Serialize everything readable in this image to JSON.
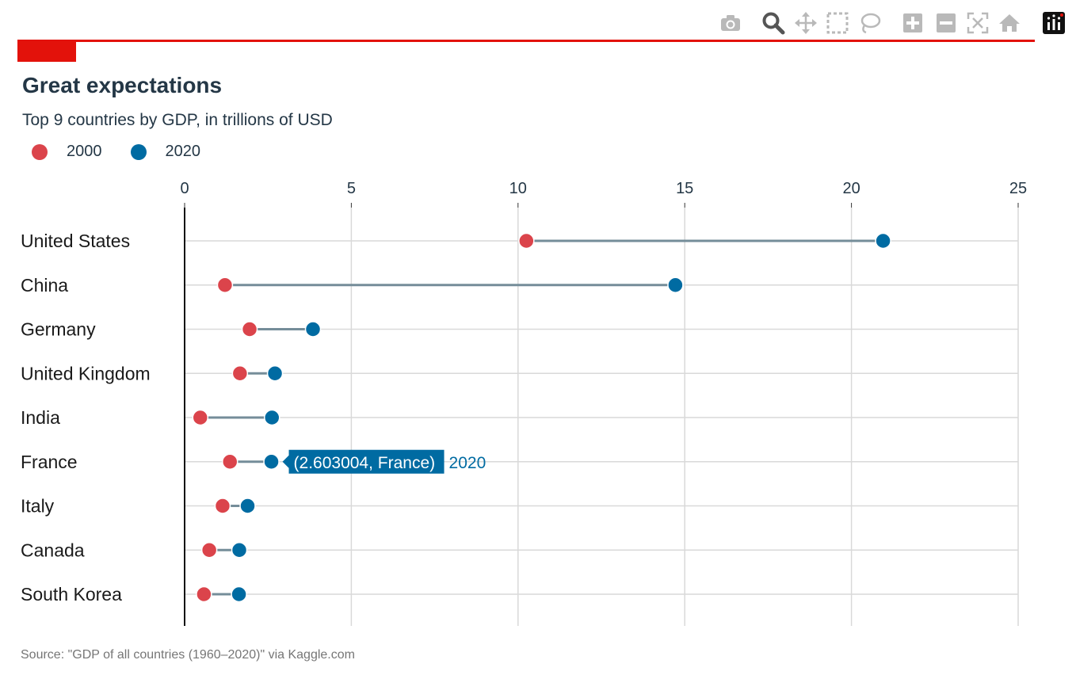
{
  "modebar": {
    "buttons": [
      {
        "name": "camera-icon",
        "label": "Download plot as a png"
      },
      {
        "name": "zoom-icon",
        "label": "Zoom"
      },
      {
        "name": "pan-icon",
        "label": "Pan"
      },
      {
        "name": "box-select-icon",
        "label": "Box Select"
      },
      {
        "name": "lasso-select-icon",
        "label": "Lasso Select"
      },
      {
        "name": "zoom-in-icon",
        "label": "Zoom in"
      },
      {
        "name": "zoom-out-icon",
        "label": "Zoom out"
      },
      {
        "name": "autoscale-icon",
        "label": "Autoscale"
      },
      {
        "name": "reset-axes-icon",
        "label": "Reset axes"
      },
      {
        "name": "plotly-logo-icon",
        "label": "Produced with Plotly"
      }
    ]
  },
  "colors": {
    "accent": "#e3120b",
    "series_2000": "#db444b",
    "series_2020": "#006ba2",
    "connector": "#758d99",
    "grid": "#d9d9d9",
    "title": "#243746"
  },
  "header": {
    "title": "Great expectations",
    "subtitle": "Top 9 countries by GDP, in trillions of USD"
  },
  "legend": {
    "items": [
      "2000",
      "2020"
    ],
    "placement": "top-left"
  },
  "tooltip": {
    "text": "(2.603004, France)",
    "series": "2020"
  },
  "source": "Source: \"GDP of all countries (1960–2020)\" via Kaggle.com",
  "chart_data": {
    "type": "scatter",
    "subtype": "dumbbell",
    "title": "Great expectations",
    "subtitle": "Top 9 countries by GDP, in trillions of USD",
    "xlabel": "",
    "ylabel": "",
    "x_axis_position": "top",
    "xlim": [
      0,
      25
    ],
    "xticks": [
      0,
      5,
      10,
      15,
      20,
      25
    ],
    "grid": true,
    "categories": [
      "United States",
      "China",
      "Germany",
      "United Kingdom",
      "India",
      "France",
      "Italy",
      "Canada",
      "South Korea"
    ],
    "series": [
      {
        "name": "2000",
        "values": [
          10.25,
          1.21,
          1.95,
          1.66,
          0.47,
          1.36,
          1.14,
          0.74,
          0.58
        ]
      },
      {
        "name": "2020",
        "values": [
          20.95,
          14.72,
          3.85,
          2.71,
          2.62,
          2.603004,
          1.89,
          1.64,
          1.63
        ]
      }
    ]
  }
}
